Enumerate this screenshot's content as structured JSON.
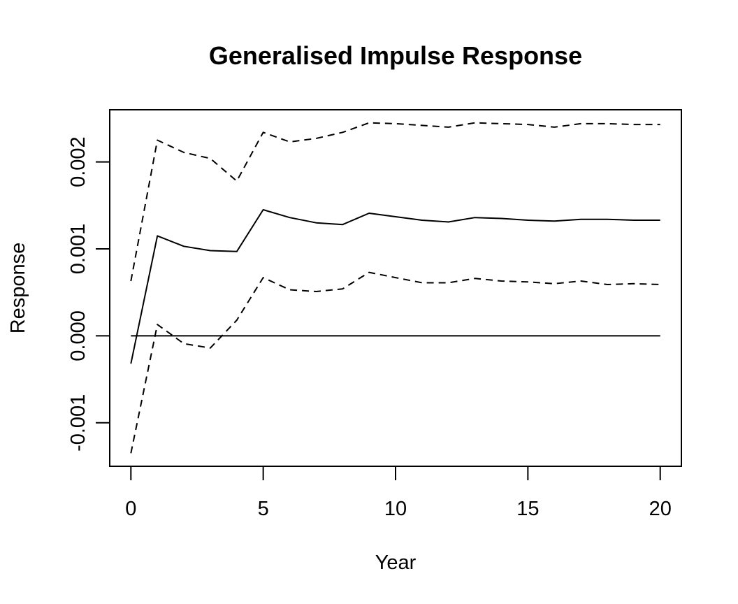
{
  "chart_data": {
    "type": "line",
    "title": "Generalised Impulse Response",
    "xlabel": "Year",
    "ylabel": "Response",
    "xlim": [
      -0.8,
      20.8
    ],
    "ylim": [
      -0.0015,
      0.0026
    ],
    "xticks": [
      0,
      5,
      10,
      15,
      20
    ],
    "xtick_labels": [
      "0",
      "5",
      "10",
      "15",
      "20"
    ],
    "yticks": [
      -0.001,
      0.0,
      0.001,
      0.002
    ],
    "ytick_labels": [
      "-0.001",
      "0.000",
      "0.001",
      "0.002"
    ],
    "grid": false,
    "reference_line": {
      "y": 0.0,
      "x_range": [
        0,
        20
      ]
    },
    "x": [
      0,
      1,
      2,
      3,
      4,
      5,
      6,
      7,
      8,
      9,
      10,
      11,
      12,
      13,
      14,
      15,
      16,
      17,
      18,
      19,
      20
    ],
    "series": [
      {
        "style": "dashed",
        "values": [
          0.00063,
          0.00225,
          0.00211,
          0.00204,
          0.00178,
          0.00234,
          0.00223,
          0.00227,
          0.00234,
          0.00245,
          0.00244,
          0.00242,
          0.0024,
          0.00245,
          0.00244,
          0.00243,
          0.0024,
          0.00244,
          0.00244,
          0.00243,
          0.00243
        ]
      },
      {
        "style": "solid",
        "values": [
          -0.00032,
          0.00115,
          0.00103,
          0.00098,
          0.00097,
          0.00145,
          0.00136,
          0.0013,
          0.00128,
          0.00141,
          0.00137,
          0.00133,
          0.00131,
          0.00136,
          0.00135,
          0.00133,
          0.00132,
          0.00134,
          0.00134,
          0.00133,
          0.00133
        ]
      },
      {
        "style": "dashed",
        "values": [
          -0.00135,
          0.00013,
          -9e-05,
          -0.00014,
          0.00018,
          0.00067,
          0.00053,
          0.00051,
          0.00054,
          0.00073,
          0.00067,
          0.00061,
          0.00061,
          0.00066,
          0.00063,
          0.00062,
          0.0006,
          0.00063,
          0.00059,
          0.0006,
          0.00059
        ]
      }
    ]
  }
}
